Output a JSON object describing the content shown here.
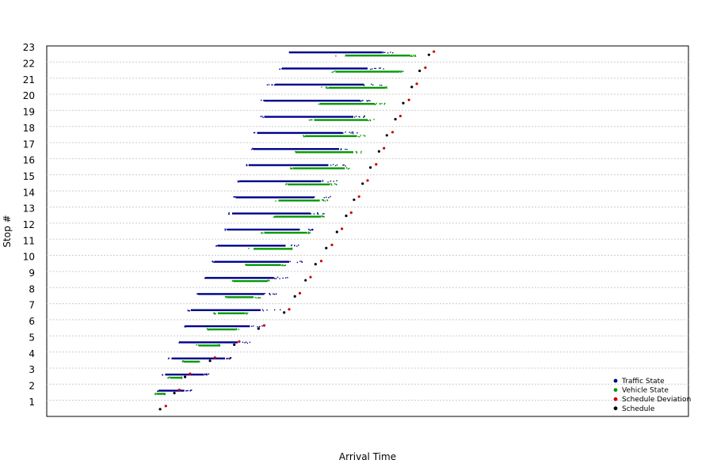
{
  "chart_data": {
    "type": "scatter",
    "title": "",
    "xlabel": "Arrival Time",
    "ylabel": "Stop #",
    "xlim": [
      0,
      900
    ],
    "ylim": [
      0.5,
      23.5
    ],
    "grid": "horizontal dotted",
    "legend_position": "bottom-right",
    "categories": [
      "1",
      "2",
      "3",
      "4",
      "5",
      "6",
      "7",
      "8",
      "9",
      "10",
      "11",
      "12",
      "13",
      "14",
      "15",
      "16",
      "17",
      "18",
      "19",
      "20",
      "21",
      "22",
      "23"
    ],
    "series": [
      {
        "name": "Traffic State",
        "color": "#00008b",
        "ranges": [
          {
            "stop": 2,
            "min": 155,
            "max": 205,
            "dense_min": 157,
            "dense_max": 193
          },
          {
            "stop": 3,
            "min": 160,
            "max": 230,
            "dense_min": 166,
            "dense_max": 220
          },
          {
            "stop": 4,
            "min": 170,
            "max": 262,
            "dense_min": 175,
            "dense_max": 250
          },
          {
            "stop": 5,
            "min": 185,
            "max": 285,
            "dense_min": 187,
            "dense_max": 268
          },
          {
            "stop": 6,
            "min": 193,
            "max": 305,
            "dense_min": 195,
            "dense_max": 285
          },
          {
            "stop": 7,
            "min": 198,
            "max": 328,
            "dense_min": 202,
            "dense_max": 300
          },
          {
            "stop": 8,
            "min": 210,
            "max": 332,
            "dense_min": 212,
            "dense_max": 305
          },
          {
            "stop": 9,
            "min": 220,
            "max": 340,
            "dense_min": 222,
            "dense_max": 318
          },
          {
            "stop": 10,
            "min": 232,
            "max": 362,
            "dense_min": 235,
            "dense_max": 340
          },
          {
            "stop": 11,
            "min": 237,
            "max": 355,
            "dense_min": 240,
            "dense_max": 335
          },
          {
            "stop": 12,
            "min": 250,
            "max": 380,
            "dense_min": 253,
            "dense_max": 355
          },
          {
            "stop": 13,
            "min": 255,
            "max": 392,
            "dense_min": 260,
            "dense_max": 370
          },
          {
            "stop": 14,
            "min": 262,
            "max": 400,
            "dense_min": 265,
            "dense_max": 375
          },
          {
            "stop": 15,
            "min": 268,
            "max": 412,
            "dense_min": 270,
            "dense_max": 385
          },
          {
            "stop": 16,
            "min": 278,
            "max": 420,
            "dense_min": 283,
            "dense_max": 395
          },
          {
            "stop": 17,
            "min": 286,
            "max": 422,
            "dense_min": 290,
            "dense_max": 410
          },
          {
            "stop": 18,
            "min": 290,
            "max": 440,
            "dense_min": 295,
            "dense_max": 415
          },
          {
            "stop": 19,
            "min": 298,
            "max": 448,
            "dense_min": 305,
            "dense_max": 430
          },
          {
            "stop": 20,
            "min": 300,
            "max": 455,
            "dense_min": 305,
            "dense_max": 440
          },
          {
            "stop": 21,
            "min": 308,
            "max": 470,
            "dense_min": 320,
            "dense_max": 445
          },
          {
            "stop": 22,
            "min": 320,
            "max": 475,
            "dense_min": 330,
            "dense_max": 450
          },
          {
            "stop": 23,
            "min": 340,
            "max": 490,
            "dense_min": 340,
            "dense_max": 470
          }
        ]
      },
      {
        "name": "Vehicle State",
        "color": "#009900",
        "ranges": [
          {
            "stop": 2,
            "min": 152,
            "max": 166,
            "dense_min": 154,
            "dense_max": 165
          },
          {
            "stop": 3,
            "min": 170,
            "max": 190,
            "dense_min": 173,
            "dense_max": 188
          },
          {
            "stop": 4,
            "min": 190,
            "max": 215,
            "dense_min": 192,
            "dense_max": 213
          },
          {
            "stop": 5,
            "min": 210,
            "max": 243,
            "dense_min": 213,
            "dense_max": 240
          },
          {
            "stop": 6,
            "min": 225,
            "max": 270,
            "dense_min": 227,
            "dense_max": 265
          },
          {
            "stop": 7,
            "min": 230,
            "max": 285,
            "dense_min": 240,
            "dense_max": 278
          },
          {
            "stop": 8,
            "min": 250,
            "max": 300,
            "dense_min": 253,
            "dense_max": 290
          },
          {
            "stop": 9,
            "min": 260,
            "max": 313,
            "dense_min": 263,
            "dense_max": 310
          },
          {
            "stop": 10,
            "min": 278,
            "max": 335,
            "dense_min": 280,
            "dense_max": 328
          },
          {
            "stop": 11,
            "min": 283,
            "max": 340,
            "dense_min": 290,
            "dense_max": 343
          },
          {
            "stop": 12,
            "min": 300,
            "max": 370,
            "dense_min": 305,
            "dense_max": 365
          },
          {
            "stop": 13,
            "min": 318,
            "max": 390,
            "dense_min": 320,
            "dense_max": 385
          },
          {
            "stop": 14,
            "min": 320,
            "max": 395,
            "dense_min": 325,
            "dense_max": 383
          },
          {
            "stop": 15,
            "min": 334,
            "max": 407,
            "dense_min": 338,
            "dense_max": 397
          },
          {
            "stop": 16,
            "min": 340,
            "max": 425,
            "dense_min": 345,
            "dense_max": 418
          },
          {
            "stop": 17,
            "min": 348,
            "max": 442,
            "dense_min": 350,
            "dense_max": 430
          },
          {
            "stop": 18,
            "min": 360,
            "max": 450,
            "dense_min": 362,
            "dense_max": 435
          },
          {
            "stop": 19,
            "min": 368,
            "max": 463,
            "dense_min": 375,
            "dense_max": 450
          },
          {
            "stop": 20,
            "min": 378,
            "max": 475,
            "dense_min": 383,
            "dense_max": 460
          },
          {
            "stop": 21,
            "min": 385,
            "max": 480,
            "dense_min": 395,
            "dense_max": 475
          },
          {
            "stop": 22,
            "min": 400,
            "max": 500,
            "dense_min": 405,
            "dense_max": 495
          },
          {
            "stop": 23,
            "min": 405,
            "max": 520,
            "dense_min": 420,
            "dense_max": 510
          }
        ]
      },
      {
        "name": "Schedule Deviation",
        "color": "#cc0000",
        "points": [
          {
            "stop": 1,
            "x": 167
          },
          {
            "stop": 2,
            "x": 186
          },
          {
            "stop": 3,
            "x": 201
          },
          {
            "stop": 4,
            "x": 236
          },
          {
            "stop": 5,
            "x": 270
          },
          {
            "stop": 6,
            "x": 305
          },
          {
            "stop": 7,
            "x": 340
          },
          {
            "stop": 8,
            "x": 355
          },
          {
            "stop": 9,
            "x": 370
          },
          {
            "stop": 10,
            "x": 385
          },
          {
            "stop": 11,
            "x": 400
          },
          {
            "stop": 12,
            "x": 414
          },
          {
            "stop": 13,
            "x": 427
          },
          {
            "stop": 14,
            "x": 438
          },
          {
            "stop": 15,
            "x": 450
          },
          {
            "stop": 16,
            "x": 462
          },
          {
            "stop": 17,
            "x": 473
          },
          {
            "stop": 18,
            "x": 485
          },
          {
            "stop": 19,
            "x": 496
          },
          {
            "stop": 20,
            "x": 508
          },
          {
            "stop": 21,
            "x": 519
          },
          {
            "stop": 22,
            "x": 531
          },
          {
            "stop": 23,
            "x": 543
          }
        ]
      },
      {
        "name": "Schedule",
        "color": "#000000",
        "points": [
          {
            "stop": 1,
            "x": 159
          },
          {
            "stop": 2,
            "x": 179
          },
          {
            "stop": 3,
            "x": 194
          },
          {
            "stop": 4,
            "x": 229
          },
          {
            "stop": 5,
            "x": 263
          },
          {
            "stop": 6,
            "x": 297
          },
          {
            "stop": 7,
            "x": 333
          },
          {
            "stop": 8,
            "x": 348
          },
          {
            "stop": 9,
            "x": 363
          },
          {
            "stop": 10,
            "x": 377
          },
          {
            "stop": 11,
            "x": 392
          },
          {
            "stop": 12,
            "x": 407
          },
          {
            "stop": 13,
            "x": 420
          },
          {
            "stop": 14,
            "x": 431
          },
          {
            "stop": 15,
            "x": 443
          },
          {
            "stop": 16,
            "x": 454
          },
          {
            "stop": 17,
            "x": 466
          },
          {
            "stop": 18,
            "x": 477
          },
          {
            "stop": 19,
            "x": 489
          },
          {
            "stop": 20,
            "x": 500
          },
          {
            "stop": 21,
            "x": 512
          },
          {
            "stop": 22,
            "x": 523
          },
          {
            "stop": 23,
            "x": 536
          }
        ]
      }
    ]
  }
}
